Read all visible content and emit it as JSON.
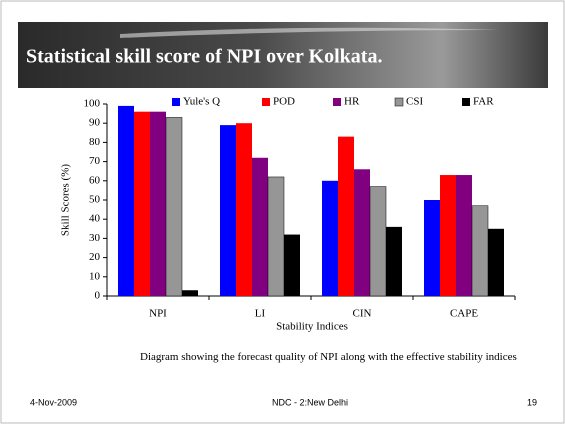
{
  "chart_data": {
    "type": "bar",
    "title": "Statistical skill score of NPI over Kolkata.",
    "categories": [
      "NPI",
      "LI",
      "CIN",
      "CAPE"
    ],
    "series": [
      {
        "name": "Yule's Q",
        "color": "#0000ff",
        "values": [
          99,
          89,
          60,
          50
        ]
      },
      {
        "name": "POD",
        "color": "#ff0000",
        "values": [
          96,
          90,
          83,
          63
        ]
      },
      {
        "name": "HR",
        "color": "#800080",
        "values": [
          96,
          72,
          66,
          63
        ]
      },
      {
        "name": "CSI",
        "color": "#969696",
        "values": [
          93,
          62,
          57,
          47
        ]
      },
      {
        "name": "FAR",
        "color": "#000000",
        "values": [
          3,
          32,
          36,
          35
        ]
      }
    ],
    "ylim": [
      0,
      100
    ],
    "yticks": [
      0,
      10,
      20,
      30,
      40,
      50,
      60,
      70,
      80,
      90,
      100
    ],
    "xlabel": "Stability Indices",
    "ylabel": "Skill Scores (%)",
    "legend": "top",
    "caption": "Diagram showing the forecast quality of NPI along with the effective stability indices"
  },
  "footer": {
    "date": "4-Nov-2009",
    "center": "NDC - 2:New Delhi",
    "page": "19"
  }
}
